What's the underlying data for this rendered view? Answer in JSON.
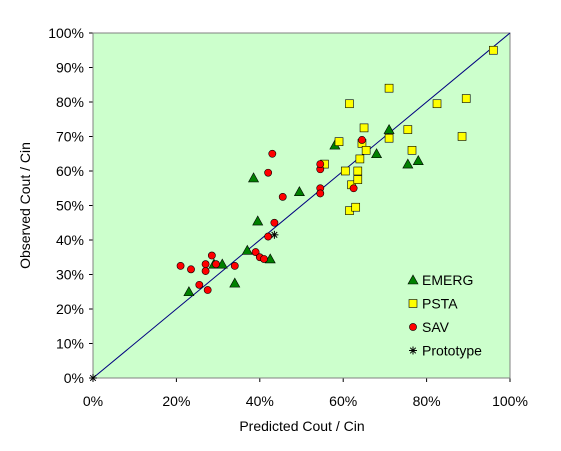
{
  "chart_data": {
    "type": "scatter",
    "title": "",
    "xlabel": "Predicted Cout / Cin",
    "ylabel": "Observed Cout / Cin",
    "xlim": [
      0,
      1
    ],
    "ylim": [
      0,
      1
    ],
    "x_ticks": [
      "0%",
      "20%",
      "40%",
      "60%",
      "80%",
      "100%"
    ],
    "y_ticks": [
      "0%",
      "10%",
      "20%",
      "30%",
      "40%",
      "50%",
      "60%",
      "70%",
      "80%",
      "90%",
      "100%"
    ],
    "grid": false,
    "reference_line": "1:1",
    "plot_background": "#ccffcc",
    "legend_position": "bottom-right",
    "series": [
      {
        "name": "EMERG",
        "marker": "triangle",
        "color": "#008000",
        "points": [
          [
            0.23,
            0.25
          ],
          [
            0.29,
            0.33
          ],
          [
            0.31,
            0.33
          ],
          [
            0.34,
            0.275
          ],
          [
            0.37,
            0.37
          ],
          [
            0.385,
            0.58
          ],
          [
            0.395,
            0.455
          ],
          [
            0.425,
            0.345
          ],
          [
            0.495,
            0.54
          ],
          [
            0.58,
            0.675
          ],
          [
            0.68,
            0.65
          ],
          [
            0.71,
            0.72
          ],
          [
            0.755,
            0.62
          ],
          [
            0.78,
            0.63
          ]
        ]
      },
      {
        "name": "PSTA",
        "marker": "square",
        "color": "#ffff00",
        "points": [
          [
            0.555,
            0.62
          ],
          [
            0.59,
            0.685
          ],
          [
            0.605,
            0.6
          ],
          [
            0.615,
            0.795
          ],
          [
            0.615,
            0.485
          ],
          [
            0.62,
            0.56
          ],
          [
            0.63,
            0.495
          ],
          [
            0.635,
            0.6
          ],
          [
            0.635,
            0.575
          ],
          [
            0.64,
            0.635
          ],
          [
            0.645,
            0.68
          ],
          [
            0.65,
            0.725
          ],
          [
            0.655,
            0.66
          ],
          [
            0.71,
            0.695
          ],
          [
            0.71,
            0.84
          ],
          [
            0.755,
            0.72
          ],
          [
            0.765,
            0.66
          ],
          [
            0.825,
            0.795
          ],
          [
            0.885,
            0.7
          ],
          [
            0.895,
            0.81
          ],
          [
            0.96,
            0.95
          ]
        ]
      },
      {
        "name": "SAV",
        "marker": "circle",
        "color": "#ff0000",
        "points": [
          [
            0.21,
            0.325
          ],
          [
            0.235,
            0.315
          ],
          [
            0.255,
            0.27
          ],
          [
            0.27,
            0.31
          ],
          [
            0.27,
            0.33
          ],
          [
            0.275,
            0.255
          ],
          [
            0.285,
            0.355
          ],
          [
            0.295,
            0.33
          ],
          [
            0.34,
            0.325
          ],
          [
            0.39,
            0.365
          ],
          [
            0.4,
            0.35
          ],
          [
            0.41,
            0.345
          ],
          [
            0.42,
            0.41
          ],
          [
            0.42,
            0.595
          ],
          [
            0.43,
            0.65
          ],
          [
            0.435,
            0.45
          ],
          [
            0.455,
            0.525
          ],
          [
            0.545,
            0.55
          ],
          [
            0.545,
            0.605
          ],
          [
            0.545,
            0.62
          ],
          [
            0.545,
            0.535
          ],
          [
            0.625,
            0.55
          ],
          [
            0.645,
            0.69
          ]
        ]
      },
      {
        "name": "Prototype",
        "marker": "asterisk",
        "color": "#000000",
        "points": [
          [
            0.0,
            0.0
          ],
          [
            0.435,
            0.415
          ]
        ]
      }
    ]
  }
}
